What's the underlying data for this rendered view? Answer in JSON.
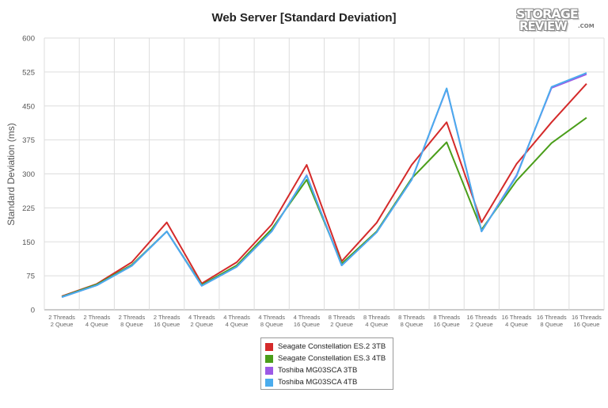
{
  "chart_data": {
    "type": "line",
    "title": "Web Server [Standard Deviation]",
    "xlabel": "",
    "ylabel": "Standard Deviation (ms)",
    "ylim": [
      0,
      600
    ],
    "yticks": [
      0,
      75,
      150,
      225,
      300,
      375,
      450,
      525,
      600
    ],
    "grid": true,
    "legend_position": "bottom",
    "categories": [
      [
        "2 Threads",
        "2 Queue"
      ],
      [
        "2 Threads",
        "4 Queue"
      ],
      [
        "2 Threads",
        "8 Queue"
      ],
      [
        "2 Threads",
        "16 Queue"
      ],
      [
        "4 Threads",
        "2 Queue"
      ],
      [
        "4 Threads",
        "4 Queue"
      ],
      [
        "4 Threads",
        "8 Queue"
      ],
      [
        "4 Threads",
        "16 Queue"
      ],
      [
        "8 Threads",
        "2 Queue"
      ],
      [
        "8 Threads",
        "4 Queue"
      ],
      [
        "8 Threads",
        "8 Queue"
      ],
      [
        "8 Threads",
        "16 Queue"
      ],
      [
        "16 Threads",
        "2 Queue"
      ],
      [
        "16 Threads",
        "4 Queue"
      ],
      [
        "16 Threads",
        "8 Queue"
      ],
      [
        "16 Threads",
        "16 Queue"
      ]
    ],
    "series": [
      {
        "name": "Seagate Constellation ES.2 3TB",
        "color": "#d42a2a",
        "values": [
          30,
          57,
          105,
          193,
          58,
          105,
          188,
          320,
          107,
          192,
          320,
          414,
          193,
          322,
          414,
          499
        ]
      },
      {
        "name": "Seagate Constellation ES.3 4TB",
        "color": "#4a9e1a",
        "values": [
          29,
          56,
          99,
          173,
          55,
          98,
          178,
          287,
          102,
          173,
          290,
          370,
          177,
          285,
          368,
          424
        ]
      },
      {
        "name": "Toshiba MG03SCA 3TB",
        "color": "#9c59e6",
        "values": [
          28,
          54,
          97,
          173,
          53,
          95,
          173,
          297,
          98,
          171,
          287,
          488,
          173,
          297,
          490,
          520
        ]
      },
      {
        "name": "Toshiba MG03SCA 4TB",
        "color": "#4aaced",
        "values": [
          28,
          54,
          97,
          173,
          53,
          95,
          173,
          296,
          98,
          171,
          287,
          489,
          173,
          295,
          492,
          523
        ]
      }
    ]
  },
  "logo": {
    "line1": "STORAGE",
    "line2": "REVIEW",
    "suffix": ".COM"
  }
}
